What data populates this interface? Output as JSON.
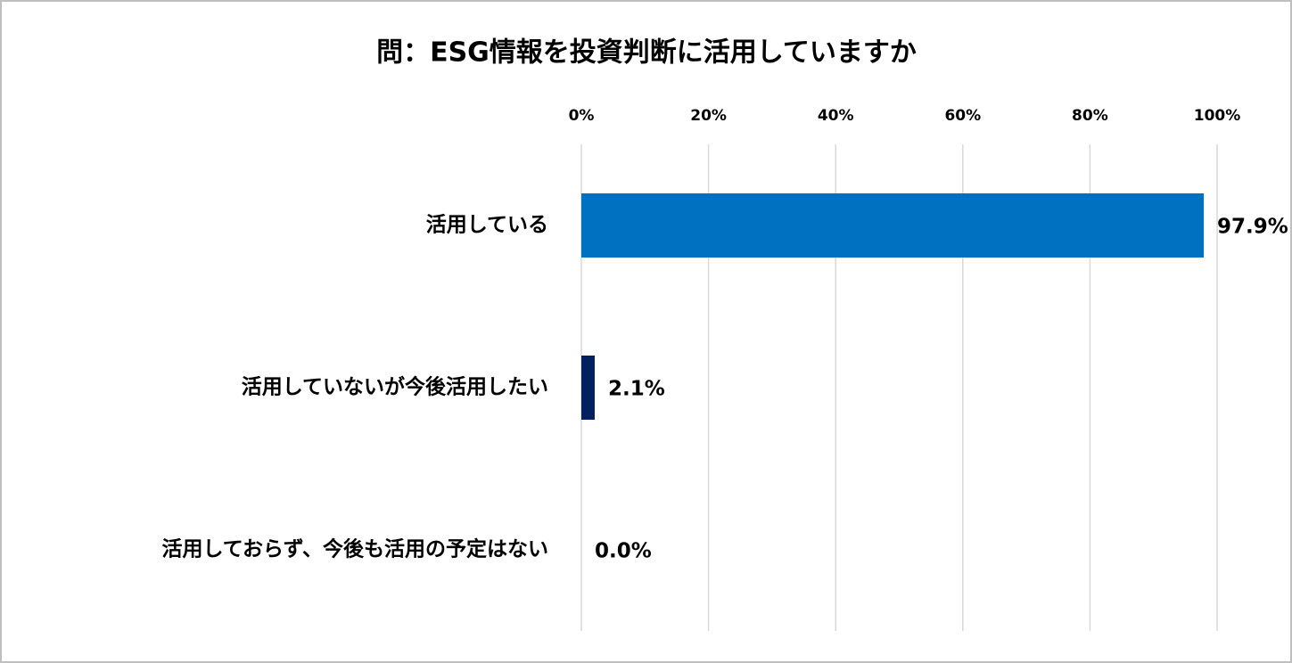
{
  "chart_data": {
    "type": "hbar",
    "title": "問：ESG情報を投資判断に活用していますか",
    "categories": [
      "活用している",
      "活用していないが今後活用したい",
      "活用しておらず、今後も活用の予定はない"
    ],
    "values": [
      97.9,
      2.1,
      0.0
    ],
    "value_labels": [
      "97.9%",
      "2.1%",
      "0.0%"
    ],
    "colors": [
      "#0070c0",
      "#002060",
      "#002060"
    ],
    "xlim": [
      0,
      100
    ],
    "xticks": [
      {
        "value": 0,
        "label": "0%"
      },
      {
        "value": 20,
        "label": "20%"
      },
      {
        "value": 40,
        "label": "40%"
      },
      {
        "value": 60,
        "label": "60%"
      },
      {
        "value": 80,
        "label": "80%"
      },
      {
        "value": 100,
        "label": "100%"
      }
    ],
    "grid": true
  }
}
